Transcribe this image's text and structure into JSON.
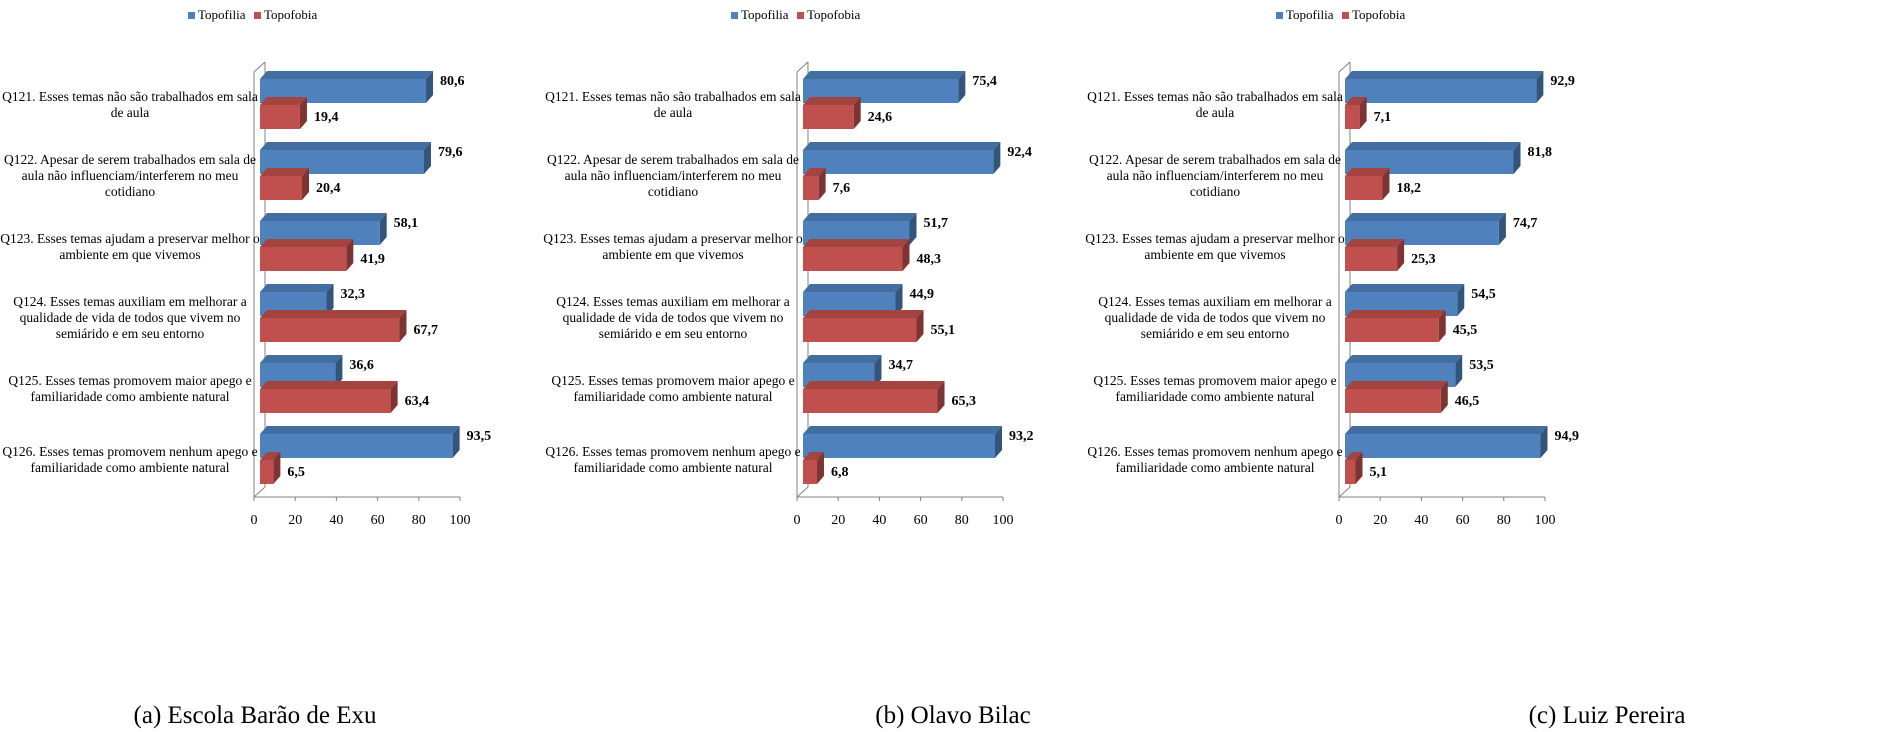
{
  "colors": {
    "topofilia": "#4F81BD",
    "topofobia": "#C0504D"
  },
  "legend": [
    "Topofilia",
    "Topofobia"
  ],
  "categories": [
    [
      "Q121. Esses temas não são trabalhados em sala",
      "de aula"
    ],
    [
      "Q122. Apesar de serem trabalhados em sala de",
      "aula não influenciam/interferem no meu",
      "cotidiano"
    ],
    [
      "Q123. Esses temas ajudam a preservar melhor o",
      "ambiente em que vivemos"
    ],
    [
      "Q124. Esses temas auxiliam em melhorar a",
      "qualidade de vida de todos que vivem no",
      "semiárido e em seu entorno"
    ],
    [
      "Q125. Esses temas promovem maior apego e",
      "familiaridade como ambiente natural"
    ],
    [
      "Q126. Esses temas promovem nenhum apego e",
      "familiaridade como ambiente natural"
    ]
  ],
  "chart_data": [
    {
      "type": "bar",
      "orientation": "horizontal",
      "caption": "(a) Escola Barão de Exu",
      "xlim": [
        0,
        100
      ],
      "xticks": [
        "0",
        "20",
        "40",
        "60",
        "80",
        "100"
      ],
      "series": [
        {
          "name": "Topofilia",
          "values": [
            80.6,
            79.6,
            58.1,
            32.3,
            36.6,
            93.5
          ],
          "labels": [
            "80,6",
            "79,6",
            "58,1",
            "32,3",
            "36,6",
            "93,5"
          ]
        },
        {
          "name": "Topofobia",
          "values": [
            19.4,
            20.4,
            41.9,
            67.7,
            63.4,
            6.5
          ],
          "labels": [
            "19,4",
            "20,4",
            "41,9",
            "67,7",
            "63,4",
            "6,5"
          ]
        }
      ]
    },
    {
      "type": "bar",
      "orientation": "horizontal",
      "caption": "(b) Olavo Bilac",
      "xlim": [
        0,
        100
      ],
      "xticks": [
        "0",
        "20",
        "40",
        "60",
        "80",
        "100"
      ],
      "series": [
        {
          "name": "Topofilia",
          "values": [
            75.4,
            92.4,
            51.7,
            44.9,
            34.7,
            93.2
          ],
          "labels": [
            "75,4",
            "92,4",
            "51,7",
            "44,9",
            "34,7",
            "93,2"
          ]
        },
        {
          "name": "Topofobia",
          "values": [
            24.6,
            7.6,
            48.3,
            55.1,
            65.3,
            6.8
          ],
          "labels": [
            "24,6",
            "7,6",
            "48,3",
            "55,1",
            "65,3",
            "6,8"
          ]
        }
      ]
    },
    {
      "type": "bar",
      "orientation": "horizontal",
      "caption": "(c) Luiz Pereira",
      "xlim": [
        0,
        100
      ],
      "xticks": [
        "0",
        "20",
        "40",
        "60",
        "80",
        "100"
      ],
      "series": [
        {
          "name": "Topofilia",
          "values": [
            92.9,
            81.8,
            74.7,
            54.5,
            53.5,
            94.9
          ],
          "labels": [
            "92,9",
            "81,8",
            "74,7",
            "54,5",
            "53,5",
            "94,9"
          ]
        },
        {
          "name": "Topofobia",
          "values": [
            7.1,
            18.2,
            25.3,
            45.5,
            46.5,
            5.1
          ],
          "labels": [
            "7,1",
            "18,2",
            "25,3",
            "45,5",
            "46,5",
            "5,1"
          ]
        }
      ]
    }
  ]
}
